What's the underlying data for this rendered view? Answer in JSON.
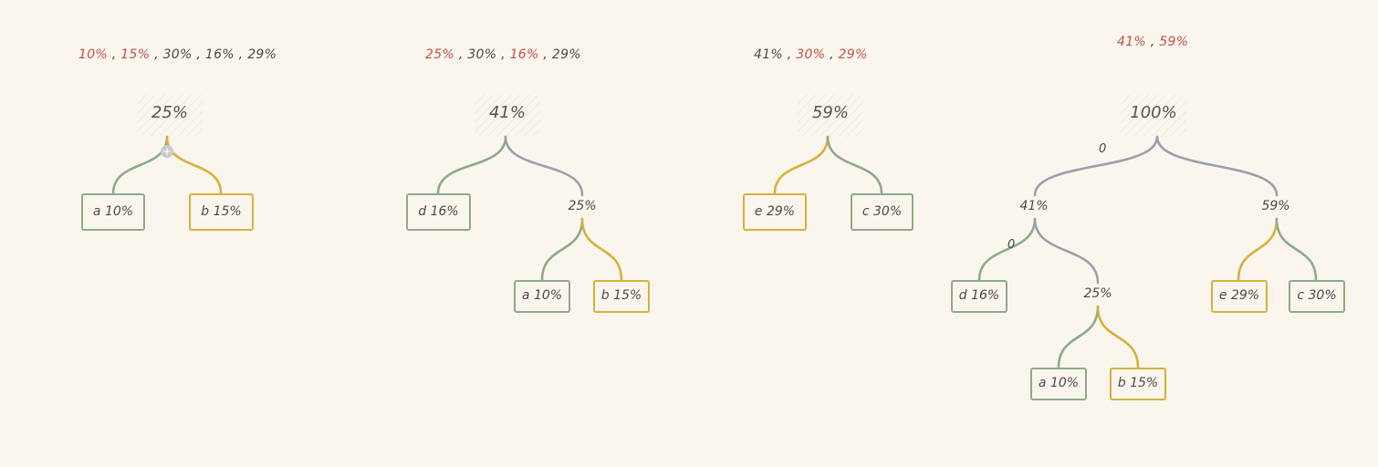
{
  "steps": [
    {
      "sequence": [
        {
          "text": "10%",
          "hl": true
        },
        {
          "text": "15%",
          "hl": true
        },
        {
          "text": "30%",
          "hl": false
        },
        {
          "text": "16%",
          "hl": false
        },
        {
          "text": "29%",
          "hl": false
        }
      ],
      "root": "25%",
      "leaves": [
        "a 10%",
        "b 15%"
      ]
    },
    {
      "sequence": [
        {
          "text": "25%",
          "hl": true
        },
        {
          "text": "30%",
          "hl": false
        },
        {
          "text": "16%",
          "hl": true
        },
        {
          "text": "29%",
          "hl": false
        }
      ],
      "root": "41%",
      "inner": [
        "25%"
      ],
      "leaves": [
        "d 16%",
        "a 10%",
        "b 15%"
      ]
    },
    {
      "sequence": [
        {
          "text": "41%",
          "hl": false
        },
        {
          "text": "30%",
          "hl": true
        },
        {
          "text": "29%",
          "hl": true
        }
      ],
      "root": "59%",
      "leaves": [
        "e 29%",
        "c 30%"
      ]
    },
    {
      "sequence": [
        {
          "text": "41%",
          "hl": true
        },
        {
          "text": "59%",
          "hl": true
        }
      ],
      "root": "100%",
      "inner": [
        "41%",
        "59%",
        "25%"
      ],
      "leaves": [
        "d 16%",
        "a 10%",
        "b 15%",
        "e 29%",
        "c 30%"
      ],
      "bits": [
        "0",
        "0"
      ]
    }
  ],
  "separator": " , ",
  "add_icon": "plus-icon",
  "colors": {
    "background": "#faf6ee",
    "green": "#8faa88",
    "yellow": "#d6b13a",
    "gray": "#9aa1ab",
    "highlight": "#c0504d"
  }
}
